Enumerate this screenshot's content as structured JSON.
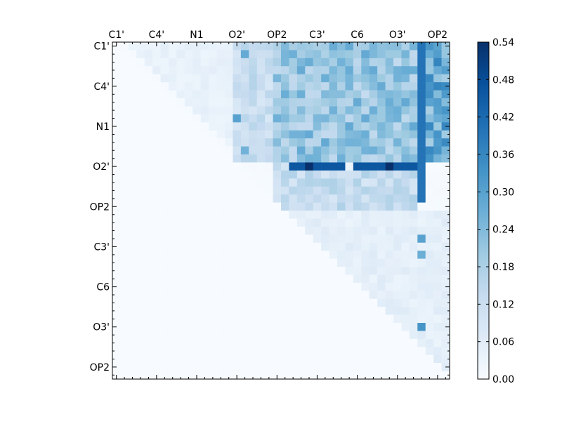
{
  "chart_data": {
    "type": "heatmap",
    "title": "",
    "xlabel": "",
    "ylabel": "",
    "matrix_size": 42,
    "tick_labels": [
      "C1'",
      "C4'",
      "N1",
      "O2'",
      "OP2",
      "C3'",
      "C6",
      "O3'",
      "OP2"
    ],
    "tick_label_positions": [
      0,
      5,
      10,
      15,
      20,
      25,
      30,
      35,
      40
    ],
    "colormap": "Blues",
    "clim": [
      0.0,
      0.54
    ],
    "colorbar": {
      "ticks": [
        0.0,
        0.06,
        0.12,
        0.18,
        0.24,
        0.3,
        0.36,
        0.42,
        0.48,
        0.54
      ],
      "tick_labels": [
        "0.00",
        "0.06",
        "0.12",
        "0.18",
        "0.24",
        "0.30",
        "0.36",
        "0.42",
        "0.48",
        "0.54"
      ]
    },
    "upper_triangle_only": true,
    "bands": [
      {
        "rows": [
          0,
          15
        ],
        "cols": [
          15,
          20
        ],
        "level": 0.12
      },
      {
        "rows": [
          0,
          15
        ],
        "cols": [
          20,
          38
        ],
        "level": 0.21
      },
      {
        "rows": [
          0,
          15
        ],
        "cols": [
          38,
          42
        ],
        "level": 0.27
      },
      {
        "rows": [
          15,
          21
        ],
        "cols": [
          20,
          38
        ],
        "level": 0.13
      },
      {
        "rows": [
          21,
          42
        ],
        "cols": [
          21,
          42
        ],
        "level": 0.05
      }
    ],
    "highlights": [
      {
        "row": 1,
        "col": 16,
        "value": 0.28
      },
      {
        "row": 9,
        "col": 15,
        "value": 0.3
      },
      {
        "row": 13,
        "col": 16,
        "value": 0.26
      },
      {
        "row": 15,
        "row_cols": [
          22,
          38
        ],
        "value": 0.46
      },
      {
        "row": 15,
        "col": 24,
        "value": 0.54
      },
      {
        "row": 15,
        "col": 34,
        "value": 0.54
      },
      {
        "row": 15,
        "col": 29,
        "value": 0.03
      },
      {
        "col": 38,
        "col_rows": [
          0,
          20
        ],
        "value": 0.4
      },
      {
        "row": 35,
        "col": 38,
        "value": 0.33
      },
      {
        "row": 24,
        "col": 38,
        "value": 0.3
      },
      {
        "row": 26,
        "col": 38,
        "value": 0.27
      }
    ]
  }
}
